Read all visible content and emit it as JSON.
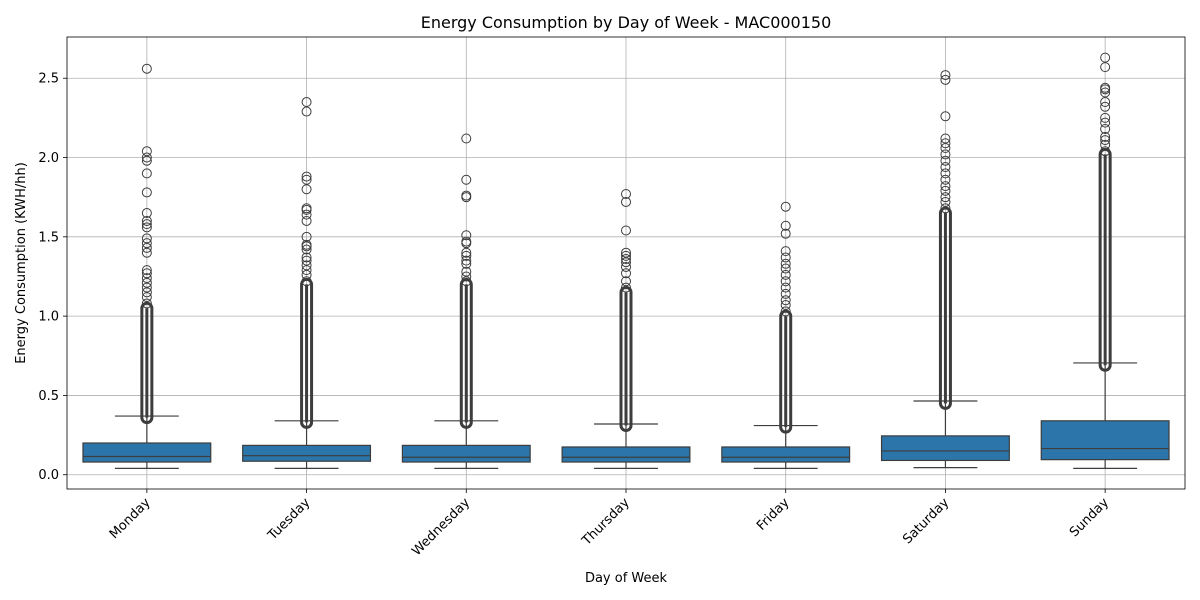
{
  "chart_data": {
    "type": "box",
    "title": "Energy Consumption by Day of Week - MAC000150",
    "xlabel": "Day of Week",
    "ylabel": "Energy Consumption (KWH/hh)",
    "ylim": [
      -0.09,
      2.76
    ],
    "yticks": [
      "0.0",
      "0.5",
      "1.0",
      "1.5",
      "2.0",
      "2.5"
    ],
    "grid": true,
    "colors": {
      "box": "#2c75aa",
      "edge": "#3d3d3d",
      "grid": "#b0b0b0"
    },
    "categories": [
      "Monday",
      "Tuesday",
      "Wednesday",
      "Thursday",
      "Friday",
      "Saturday",
      "Sunday"
    ],
    "boxes": [
      {
        "whislo": 0.04,
        "q1": 0.08,
        "med": 0.115,
        "q3": 0.2,
        "whishi": 0.37,
        "outlier_range": [
          0.36,
          1.05
        ],
        "outliers": [
          1.08,
          1.12,
          1.15,
          1.18,
          1.21,
          1.24,
          1.27,
          1.29,
          1.4,
          1.43,
          1.46,
          1.49,
          1.56,
          1.58,
          1.6,
          1.65,
          1.78,
          1.9,
          1.98,
          2.0,
          2.04,
          2.56
        ]
      },
      {
        "whislo": 0.04,
        "q1": 0.085,
        "med": 0.12,
        "q3": 0.185,
        "whishi": 0.34,
        "outlier_range": [
          0.33,
          1.2
        ],
        "outliers": [
          1.22,
          1.26,
          1.29,
          1.32,
          1.35,
          1.37,
          1.42,
          1.44,
          1.45,
          1.5,
          1.6,
          1.64,
          1.67,
          1.68,
          1.8,
          1.86,
          1.88,
          2.29,
          2.35
        ]
      },
      {
        "whislo": 0.04,
        "q1": 0.08,
        "med": 0.11,
        "q3": 0.185,
        "whishi": 0.34,
        "outlier_range": [
          0.33,
          1.2
        ],
        "outliers": [
          1.22,
          1.25,
          1.28,
          1.33,
          1.35,
          1.38,
          1.4,
          1.46,
          1.47,
          1.51,
          1.75,
          1.76,
          1.86,
          2.12
        ]
      },
      {
        "whislo": 0.04,
        "q1": 0.08,
        "med": 0.11,
        "q3": 0.175,
        "whishi": 0.32,
        "outlier_range": [
          0.31,
          1.15
        ],
        "outliers": [
          1.18,
          1.22,
          1.27,
          1.31,
          1.34,
          1.36,
          1.38,
          1.4,
          1.54,
          1.72,
          1.77
        ]
      },
      {
        "whislo": 0.04,
        "q1": 0.08,
        "med": 0.11,
        "q3": 0.175,
        "whishi": 0.31,
        "outlier_range": [
          0.3,
          1.0
        ],
        "outliers": [
          1.03,
          1.07,
          1.1,
          1.14,
          1.18,
          1.22,
          1.26,
          1.3,
          1.33,
          1.37,
          1.41,
          1.52,
          1.57,
          1.69
        ]
      },
      {
        "whislo": 0.045,
        "q1": 0.09,
        "med": 0.15,
        "q3": 0.245,
        "whishi": 0.465,
        "outlier_range": [
          0.45,
          1.65
        ],
        "outliers": [
          1.68,
          1.72,
          1.75,
          1.79,
          1.82,
          1.86,
          1.9,
          1.94,
          1.98,
          2.02,
          2.06,
          2.09,
          2.12,
          2.26,
          2.49,
          2.52
        ]
      },
      {
        "whislo": 0.04,
        "q1": 0.095,
        "med": 0.165,
        "q3": 0.34,
        "whishi": 0.705,
        "outlier_range": [
          0.69,
          2.02
        ],
        "outliers": [
          2.04,
          2.08,
          2.11,
          2.13,
          2.18,
          2.22,
          2.25,
          2.32,
          2.35,
          2.41,
          2.43,
          2.44,
          2.57,
          2.63
        ]
      }
    ]
  }
}
